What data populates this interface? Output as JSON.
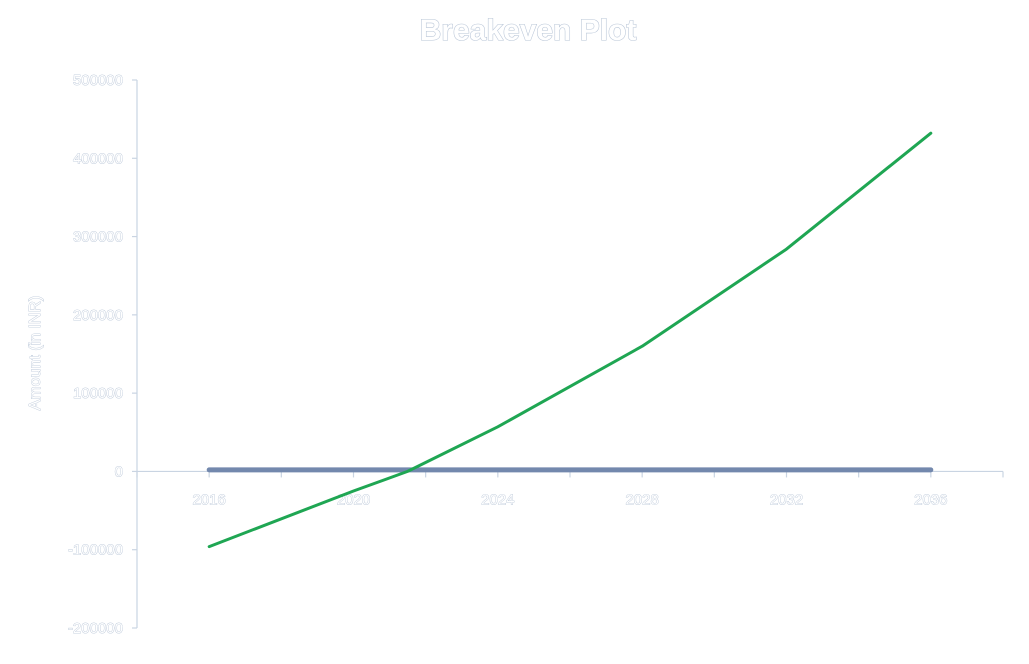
{
  "chart_data": {
    "type": "line",
    "title": "Breakeven Plot",
    "xlabel": "",
    "ylabel": "Amount (in INR)",
    "x_tick_labels": [
      "2016",
      "2020",
      "2024",
      "2028",
      "2032",
      "2036"
    ],
    "y_tick_labels": [
      "500000",
      "400000",
      "300000",
      "200000",
      "100000",
      "0",
      "-100000",
      "-200000"
    ],
    "xlim": [
      2014,
      2038
    ],
    "ylim": [
      -200000,
      500000
    ],
    "grid": false,
    "legend": "none",
    "series": [
      {
        "color": "#1fa653",
        "x": [
          2016,
          2020,
          2021.5,
          2024,
          2028,
          2032,
          2036
        ],
        "y": [
          -96000,
          -25000,
          0,
          57000,
          160000,
          284000,
          432000
        ]
      },
      {
        "color": "#7388ad",
        "x": [
          2016,
          2020,
          2024,
          2028,
          2032,
          2036
        ],
        "y": [
          2000,
          2000,
          2000,
          2000,
          2000,
          2000
        ]
      }
    ],
    "colors": {
      "axis": "#c9d4e2",
      "text_fill": "#ffffff",
      "text_outline": "#b7c4d6"
    }
  }
}
